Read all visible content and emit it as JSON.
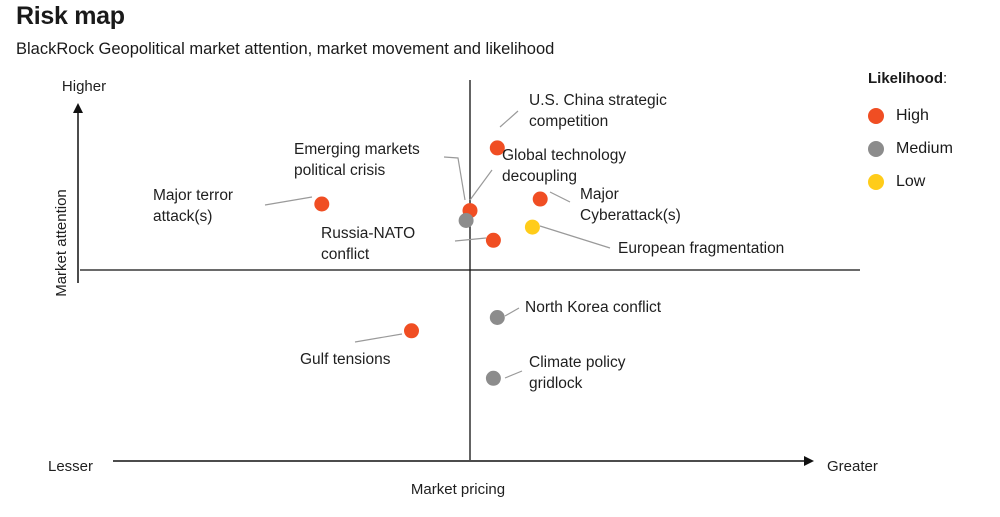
{
  "title": "Risk map",
  "subtitle": "BlackRock Geopolitical market attention, market movement and likelihood",
  "legend": {
    "title": "Likelihood",
    "title_suffix": ":",
    "items": [
      {
        "label": "High",
        "color": "#f04e23"
      },
      {
        "label": "Medium",
        "color": "#8c8c8c"
      },
      {
        "label": "Low",
        "color": "#ffcc1a"
      }
    ]
  },
  "chart_data": {
    "type": "scatter",
    "title": "Risk map",
    "subtitle": "BlackRock Geopolitical market attention, market movement and likelihood",
    "xlabel": "Market pricing",
    "ylabel": "Market attention",
    "x_range_labels": {
      "low": "Lesser",
      "high": "Greater"
    },
    "y_range_labels": {
      "low": "",
      "high": "Higher"
    },
    "xlim": [
      -1,
      1
    ],
    "ylim": [
      -1,
      1
    ],
    "grid": false,
    "legend_position": "top-right",
    "points": [
      {
        "label": "U.S. China strategic competition",
        "lines": [
          "U.S. China strategic",
          "competition"
        ],
        "x": 0.07,
        "y": 0.74,
        "likelihood": "High"
      },
      {
        "label": "Emerging markets political crisis",
        "lines": [
          "Emerging markets",
          "political crisis"
        ],
        "x": 0.0,
        "y": 0.36,
        "likelihood": "High"
      },
      {
        "label": "Global technology decoupling",
        "lines": [
          "Global technology",
          "decoupling"
        ],
        "x": -0.01,
        "y": 0.3,
        "likelihood": "Medium"
      },
      {
        "label": "Major terror attack(s)",
        "lines": [
          "Major terror",
          "attack(s)"
        ],
        "x": -0.38,
        "y": 0.4,
        "likelihood": "High"
      },
      {
        "label": "Major Cyberattack(s)",
        "lines": [
          "Major",
          "Cyberattack(s)"
        ],
        "x": 0.18,
        "y": 0.43,
        "likelihood": "High"
      },
      {
        "label": "Russia-NATO conflict",
        "lines": [
          "Russia-NATO",
          "conflict"
        ],
        "x": 0.06,
        "y": 0.18,
        "likelihood": "High"
      },
      {
        "label": "European fragmentation",
        "lines": [
          "European fragmentation"
        ],
        "x": 0.16,
        "y": 0.26,
        "likelihood": "Low"
      },
      {
        "label": "North Korea conflict",
        "lines": [
          "North Korea conflict"
        ],
        "x": 0.07,
        "y": -0.25,
        "likelihood": "Medium"
      },
      {
        "label": "Gulf tensions",
        "lines": [
          "Gulf tensions"
        ],
        "x": -0.15,
        "y": -0.32,
        "likelihood": "High"
      },
      {
        "label": "Climate policy gridlock",
        "lines": [
          "Climate policy",
          "gridlock"
        ],
        "x": 0.06,
        "y": -0.57,
        "likelihood": "Medium"
      }
    ]
  }
}
